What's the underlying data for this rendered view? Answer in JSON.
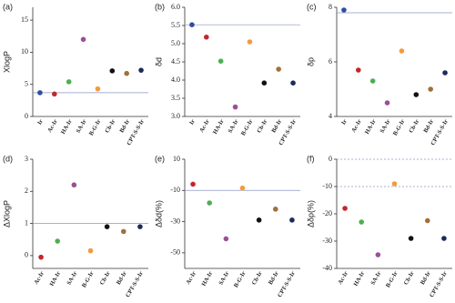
{
  "chart_data": [
    {
      "type": "scatter",
      "panel_label": "(a)",
      "ylabel": "XlogP",
      "categories": [
        "Ir",
        "Ac-Ir",
        "HA-Ir",
        "SA-Ir",
        "B-G-Ir",
        "Cb-Ir",
        "Bd-Ir",
        "CPT-S-S-Ir"
      ],
      "values": [
        3.7,
        3.5,
        5.4,
        12,
        4.3,
        7.1,
        6.7,
        7.2
      ],
      "colors": [
        "#2f4d9e",
        "#c4262e",
        "#4caf50",
        "#9b4f96",
        "#f39b3c",
        "#111111",
        "#a0703c",
        "#1c2a5c"
      ],
      "ylim": [
        0,
        17
      ],
      "yticks": [
        0,
        5,
        10,
        15
      ],
      "reference_lines": [
        3.7
      ]
    },
    {
      "type": "scatter",
      "panel_label": "(b)",
      "ylabel": "δd",
      "categories": [
        "Ir",
        "Ac-Ir",
        "HA-Ir",
        "SA-Ir",
        "B-G-Ir",
        "Cb-Ir",
        "Bd-Ir",
        "CPT-S-S-Ir"
      ],
      "values": [
        5.52,
        5.18,
        4.52,
        3.26,
        5.05,
        3.92,
        4.3,
        3.92
      ],
      "colors": [
        "#2f4d9e",
        "#c4262e",
        "#4caf50",
        "#9b4f96",
        "#f39b3c",
        "#111111",
        "#a0703c",
        "#1c2a5c"
      ],
      "ylim": [
        3,
        6
      ],
      "yticks": [
        {
          "value": 3,
          "label": "3.0"
        },
        {
          "value": 3.5,
          "label": "3.5"
        },
        {
          "value": 4,
          "label": "4.0"
        },
        {
          "value": 4.5,
          "label": "4.5"
        },
        {
          "value": 5,
          "label": "5.0"
        },
        {
          "value": 5.5,
          "label": "5.5"
        },
        {
          "value": 6,
          "label": "6.0"
        }
      ],
      "reference_lines": [
        5.52
      ]
    },
    {
      "type": "scatter",
      "panel_label": "(c)",
      "ylabel": "δp",
      "categories": [
        "Ir",
        "Ac-Ir",
        "HA-Ir",
        "SA-Ir",
        "B-G-Ir",
        "Cb-Ir",
        "Bd-Ir",
        "CPT-S-S-Ir"
      ],
      "values": [
        7.9,
        5.7,
        5.3,
        4.5,
        6.4,
        4.8,
        5.0,
        5.6
      ],
      "colors": [
        "#2f4d9e",
        "#c4262e",
        "#4caf50",
        "#9b4f96",
        "#f39b3c",
        "#111111",
        "#a0703c",
        "#1c2a5c"
      ],
      "ylim": [
        4,
        8
      ],
      "yticks": [
        4,
        6,
        8
      ],
      "reference_lines": [
        7.8
      ]
    },
    {
      "type": "scatter",
      "panel_label": "(d)",
      "ylabel": "ΔXlogP",
      "categories": [
        "Ac-Ir",
        "HA-Ir",
        "SA-Ir",
        "B-G-Ir",
        "Cb-Ir",
        "Bd-Ir",
        "CPT-S-S-Ir"
      ],
      "values": [
        -0.05,
        0.45,
        2.2,
        0.15,
        0.9,
        0.75,
        0.9
      ],
      "colors": [
        "#c4262e",
        "#4caf50",
        "#9b4f96",
        "#f39b3c",
        "#111111",
        "#a0703c",
        "#1c2a5c"
      ],
      "ylim": [
        -0.4,
        3
      ],
      "yticks": [
        0,
        1,
        2,
        3
      ],
      "reference_lines": [
        1
      ]
    },
    {
      "type": "scatter",
      "panel_label": "(e)",
      "ylabel": "Δδd(%)",
      "categories": [
        "Ac-Ir",
        "HA-Ir",
        "SA-Ir",
        "B-G-Ir",
        "Cb-Ir",
        "Bd-Ir",
        "CPT-S-S-Ir"
      ],
      "values": [
        -6,
        -18,
        -41,
        -8.5,
        -29,
        -22,
        -29
      ],
      "colors": [
        "#c4262e",
        "#4caf50",
        "#9b4f96",
        "#f39b3c",
        "#111111",
        "#a0703c",
        "#1c2a5c"
      ],
      "ylim": [
        -60,
        10
      ],
      "yticks": [
        -50,
        -30,
        -10,
        10
      ],
      "reference_lines": [
        -10
      ]
    },
    {
      "type": "scatter",
      "panel_label": "(f)",
      "ylabel": "Δδp(%)",
      "categories": [
        "Ac-Ir",
        "HA-Ir",
        "SA-Ir",
        "B-G-Ir",
        "Cb-Ir",
        "Bd-Ir",
        "CPT-S-S-Ir"
      ],
      "values": [
        -18,
        -23,
        -35,
        -9,
        -29,
        -22.5,
        -29
      ],
      "colors": [
        "#c4262e",
        "#4caf50",
        "#9b4f96",
        "#f39b3c",
        "#111111",
        "#a0703c",
        "#1c2a5c"
      ],
      "ylim": [
        -40,
        0
      ],
      "yticks": [
        -40,
        -30,
        -20,
        -10,
        0
      ],
      "reference_lines": [
        0,
        -10
      ]
    }
  ]
}
